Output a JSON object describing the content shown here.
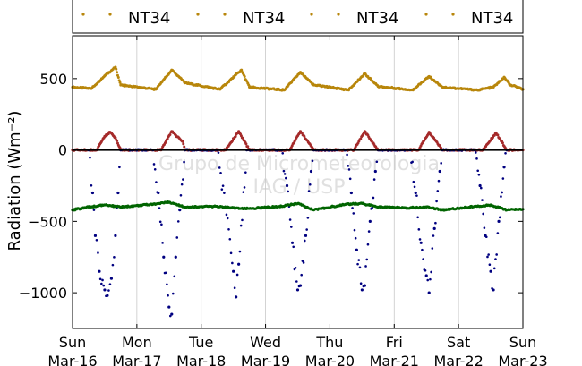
{
  "chart_data": {
    "type": "scatter",
    "title": "",
    "xlabel": "",
    "ylabel": "Radiation (Wm⁻²)",
    "ylim": [
      -1250,
      800
    ],
    "xlim": [
      "2014-03-16",
      "2014-03-23"
    ],
    "yticks": [
      -1000,
      -500,
      0,
      500
    ],
    "ytick_labels": [
      "−1000",
      "−500",
      "0",
      "500"
    ],
    "xtick_labels": [
      {
        "day": "Sun",
        "date": "Mar-16"
      },
      {
        "day": "Mon",
        "date": "Mar-17"
      },
      {
        "day": "Tue",
        "date": "Mar-18"
      },
      {
        "day": "Wed",
        "date": "Mar-19"
      },
      {
        "day": "Thu",
        "date": "Mar-20"
      },
      {
        "day": "Fri",
        "date": "Mar-21"
      },
      {
        "day": "Sat",
        "date": "Mar-22"
      },
      {
        "day": "Sun",
        "date": "Mar-23"
      }
    ],
    "grid": true,
    "legend_position": "top",
    "legend": [
      "NT34",
      "NT34",
      "NT34",
      "NT34"
    ],
    "watermark": [
      "Grupo de Micrometeorologia",
      "IAG / USP"
    ],
    "series": [
      {
        "name": "NT34",
        "color": "#b8860b",
        "values": [
          {
            "x": "2014-03-16 00:00",
            "y": 440
          },
          {
            "x": "2014-03-16 07:00",
            "y": 430
          },
          {
            "x": "2014-03-16 12:00",
            "y": 520
          },
          {
            "x": "2014-03-16 16:00",
            "y": 580
          },
          {
            "x": "2014-03-16 18:00",
            "y": 455
          },
          {
            "x": "2014-03-17 07:00",
            "y": 425
          },
          {
            "x": "2014-03-17 13:00",
            "y": 560
          },
          {
            "x": "2014-03-17 18:00",
            "y": 470
          },
          {
            "x": "2014-03-18 07:00",
            "y": 425
          },
          {
            "x": "2014-03-18 15:00",
            "y": 560
          },
          {
            "x": "2014-03-18 18:00",
            "y": 440
          },
          {
            "x": "2014-03-19 07:00",
            "y": 420
          },
          {
            "x": "2014-03-19 13:00",
            "y": 545
          },
          {
            "x": "2014-03-19 18:00",
            "y": 455
          },
          {
            "x": "2014-03-20 07:00",
            "y": 420
          },
          {
            "x": "2014-03-20 13:00",
            "y": 535
          },
          {
            "x": "2014-03-20 18:00",
            "y": 445
          },
          {
            "x": "2014-03-21 07:00",
            "y": 420
          },
          {
            "x": "2014-03-21 13:00",
            "y": 515
          },
          {
            "x": "2014-03-21 18:00",
            "y": 440
          },
          {
            "x": "2014-03-22 07:00",
            "y": 420
          },
          {
            "x": "2014-03-22 13:00",
            "y": 440
          },
          {
            "x": "2014-03-22 17:00",
            "y": 510
          },
          {
            "x": "2014-03-22 19:00",
            "y": 460
          },
          {
            "x": "2014-03-23 00:00",
            "y": 425
          }
        ]
      },
      {
        "name": "NT34",
        "color": "#a52a2a",
        "values": [
          {
            "x": "2014-03-16 00:00",
            "y": 0
          },
          {
            "x": "2014-03-16 09:00",
            "y": 0
          },
          {
            "x": "2014-03-16 12:00",
            "y": 95
          },
          {
            "x": "2014-03-16 14:00",
            "y": 125
          },
          {
            "x": "2014-03-16 16:00",
            "y": 85
          },
          {
            "x": "2014-03-16 18:00",
            "y": 0
          },
          {
            "x": "2014-03-17 09:00",
            "y": 0
          },
          {
            "x": "2014-03-17 13:00",
            "y": 130
          },
          {
            "x": "2014-03-17 17:00",
            "y": 60
          },
          {
            "x": "2014-03-17 18:00",
            "y": 0
          },
          {
            "x": "2014-03-18 09:00",
            "y": 0
          },
          {
            "x": "2014-03-18 14:00",
            "y": 130
          },
          {
            "x": "2014-03-18 18:00",
            "y": 0
          },
          {
            "x": "2014-03-19 09:00",
            "y": 0
          },
          {
            "x": "2014-03-19 13:00",
            "y": 130
          },
          {
            "x": "2014-03-19 18:00",
            "y": 0
          },
          {
            "x": "2014-03-20 09:00",
            "y": 0
          },
          {
            "x": "2014-03-20 13:00",
            "y": 130
          },
          {
            "x": "2014-03-20 18:00",
            "y": 0
          },
          {
            "x": "2014-03-21 09:00",
            "y": 0
          },
          {
            "x": "2014-03-21 13:00",
            "y": 125
          },
          {
            "x": "2014-03-21 18:00",
            "y": 0
          },
          {
            "x": "2014-03-22 09:00",
            "y": 0
          },
          {
            "x": "2014-03-22 14:00",
            "y": 120
          },
          {
            "x": "2014-03-22 18:00",
            "y": 0
          },
          {
            "x": "2014-03-23 00:00",
            "y": 0
          }
        ]
      },
      {
        "name": "NT34",
        "color": "#000080",
        "values": [
          {
            "x": "2014-03-16 06:00",
            "y": 0
          },
          {
            "x": "2014-03-16 07:30",
            "y": -300
          },
          {
            "x": "2014-03-16 08:30",
            "y": -600
          },
          {
            "x": "2014-03-16 10:00",
            "y": -850
          },
          {
            "x": "2014-03-16 12:00",
            "y": -980
          },
          {
            "x": "2014-03-16 13:00",
            "y": -1020
          },
          {
            "x": "2014-03-16 14:30",
            "y": -900
          },
          {
            "x": "2014-03-16 16:00",
            "y": -600
          },
          {
            "x": "2014-03-16 17:00",
            "y": -300
          },
          {
            "x": "2014-03-16 18:00",
            "y": 0
          },
          {
            "x": "2014-03-17 06:00",
            "y": 0
          },
          {
            "x": "2014-03-17 08:00",
            "y": -300
          },
          {
            "x": "2014-03-17 10:00",
            "y": -750
          },
          {
            "x": "2014-03-17 12:00",
            "y": -1100
          },
          {
            "x": "2014-03-17 13:00",
            "y": -1150
          },
          {
            "x": "2014-03-17 14:30",
            "y": -750
          },
          {
            "x": "2014-03-17 16:00",
            "y": -420
          },
          {
            "x": "2014-03-17 18:00",
            "y": 0
          },
          {
            "x": "2014-03-18 06:00",
            "y": 0
          },
          {
            "x": "2014-03-18 09:00",
            "y": -400
          },
          {
            "x": "2014-03-18 12:00",
            "y": -850
          },
          {
            "x": "2014-03-18 13:00",
            "y": -1030
          },
          {
            "x": "2014-03-18 14:00",
            "y": -800
          },
          {
            "x": "2014-03-18 17:00",
            "y": 0
          },
          {
            "x": "2014-03-19 06:00",
            "y": 0
          },
          {
            "x": "2014-03-19 08:00",
            "y": -250
          },
          {
            "x": "2014-03-19 10:00",
            "y": -650
          },
          {
            "x": "2014-03-19 12:00",
            "y": -980
          },
          {
            "x": "2014-03-19 13:00",
            "y": -950
          },
          {
            "x": "2014-03-19 15:00",
            "y": -600
          },
          {
            "x": "2014-03-19 17:00",
            "y": -150
          },
          {
            "x": "2014-03-19 18:00",
            "y": 0
          },
          {
            "x": "2014-03-20 06:00",
            "y": 0
          },
          {
            "x": "2014-03-20 08:00",
            "y": -300
          },
          {
            "x": "2014-03-20 10:00",
            "y": -700
          },
          {
            "x": "2014-03-20 12:00",
            "y": -980
          },
          {
            "x": "2014-03-20 13:00",
            "y": -950
          },
          {
            "x": "2014-03-20 15:00",
            "y": -500
          },
          {
            "x": "2014-03-20 17:00",
            "y": -150
          },
          {
            "x": "2014-03-20 18:00",
            "y": 0
          },
          {
            "x": "2014-03-21 06:00",
            "y": 0
          },
          {
            "x": "2014-03-21 08:00",
            "y": -300
          },
          {
            "x": "2014-03-21 10:00",
            "y": -650
          },
          {
            "x": "2014-03-21 12:00",
            "y": -880
          },
          {
            "x": "2014-03-21 13:00",
            "y": -1000
          },
          {
            "x": "2014-03-21 15:00",
            "y": -550
          },
          {
            "x": "2014-03-21 17:00",
            "y": -150
          },
          {
            "x": "2014-03-21 18:00",
            "y": 0
          },
          {
            "x": "2014-03-22 06:00",
            "y": 0
          },
          {
            "x": "2014-03-22 08:00",
            "y": -250
          },
          {
            "x": "2014-03-22 10:00",
            "y": -600
          },
          {
            "x": "2014-03-22 12:00",
            "y": -850
          },
          {
            "x": "2014-03-22 13:00",
            "y": -980
          },
          {
            "x": "2014-03-22 15:00",
            "y": -500
          },
          {
            "x": "2014-03-22 17:00",
            "y": -120
          },
          {
            "x": "2014-03-22 18:00",
            "y": 0
          }
        ]
      },
      {
        "name": "NT34",
        "color": "#006400",
        "values": [
          {
            "x": "2014-03-16 00:00",
            "y": -420
          },
          {
            "x": "2014-03-16 06:00",
            "y": -400
          },
          {
            "x": "2014-03-16 12:00",
            "y": -385
          },
          {
            "x": "2014-03-16 18:00",
            "y": -400
          },
          {
            "x": "2014-03-17 06:00",
            "y": -380
          },
          {
            "x": "2014-03-17 12:00",
            "y": -365
          },
          {
            "x": "2014-03-17 18:00",
            "y": -400
          },
          {
            "x": "2014-03-18 06:00",
            "y": -395
          },
          {
            "x": "2014-03-18 12:00",
            "y": -405
          },
          {
            "x": "2014-03-18 18:00",
            "y": -410
          },
          {
            "x": "2014-03-19 06:00",
            "y": -395
          },
          {
            "x": "2014-03-19 12:00",
            "y": -375
          },
          {
            "x": "2014-03-19 18:00",
            "y": -420
          },
          {
            "x": "2014-03-20 06:00",
            "y": -380
          },
          {
            "x": "2014-03-20 12:00",
            "y": -375
          },
          {
            "x": "2014-03-20 18:00",
            "y": -400
          },
          {
            "x": "2014-03-21 06:00",
            "y": -405
          },
          {
            "x": "2014-03-21 12:00",
            "y": -400
          },
          {
            "x": "2014-03-21 18:00",
            "y": -420
          },
          {
            "x": "2014-03-22 06:00",
            "y": -395
          },
          {
            "x": "2014-03-22 12:00",
            "y": -385
          },
          {
            "x": "2014-03-22 18:00",
            "y": -420
          },
          {
            "x": "2014-03-23 00:00",
            "y": -415
          }
        ]
      }
    ]
  }
}
